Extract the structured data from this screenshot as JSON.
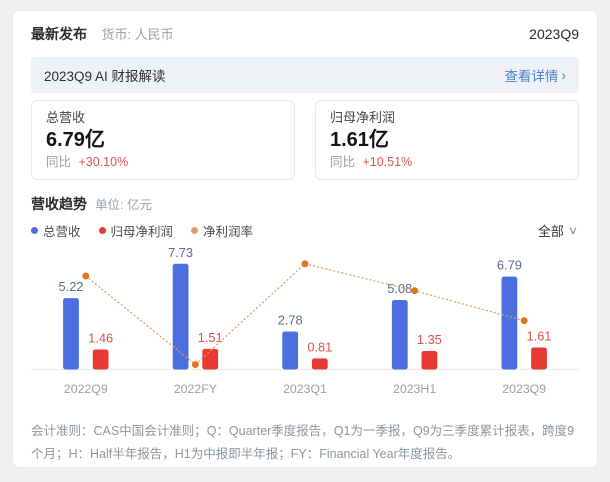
{
  "page": {
    "header": {
      "title": "最新发布",
      "currency_label": "货币: 人民币",
      "period": "2023Q9"
    },
    "ai_banner": {
      "title": "2023Q9 AI 财报解读",
      "link_label": "查看详情"
    },
    "stat_cards": [
      {
        "label": "总营收",
        "value": "6.79亿",
        "yoy_label": "同比",
        "yoy_value": "+30.10%"
      },
      {
        "label": "归母净利润",
        "value": "1.61亿",
        "yoy_label": "同比",
        "yoy_value": "+10.51%"
      }
    ],
    "section": {
      "title": "营收趋势",
      "unit_label": "单位: 亿元"
    },
    "filter": {
      "selected": "全部"
    },
    "footnote": "会计准则：CAS中国会计准则；Q：Quarter季度报告，Q1为一季报，Q9为三季度累计报表，跨度9个月；H：Half半年报告，H1为中报即半年报；FY：Financial Year年度报告。"
  },
  "colors": {
    "accent_link": "#4f7fd0",
    "yoy_up_red": "#e0544e",
    "banner_bg": "#eef1f6",
    "axis_label_gray": "#9b9fa6",
    "axis_line_gray": "#e9e9e9"
  },
  "icons": {
    "chevron_right": "›",
    "chevron_down": "∨"
  },
  "chart_data": {
    "type": "bar",
    "subtype": "grouped-bars-with-dotted-line",
    "title": "营收趋势",
    "unit": "亿元",
    "categories": [
      "2022Q9",
      "2022FY",
      "2023Q1",
      "2023H1",
      "2023Q9"
    ],
    "series": [
      {
        "key": "total-revenue",
        "name": "总营收",
        "type": "bar",
        "color": "#4b6fe0",
        "label_color": "#5c6b92",
        "values": [
          5.22,
          7.73,
          2.78,
          5.08,
          6.79
        ]
      },
      {
        "key": "net-profit",
        "name": "归母净利润",
        "type": "bar",
        "color": "#e93935",
        "label_color": "#d9544e",
        "values": [
          1.46,
          1.51,
          0.81,
          1.35,
          1.61
        ]
      },
      {
        "key": "net-margin",
        "name": "净利润率",
        "type": "line",
        "style": "dotted",
        "color": "#e39b60",
        "marker_color": "#e2761f",
        "unit": "%",
        "values_estimated_pct": [
          27.97,
          19.53,
          29.14,
          26.57,
          23.71
        ]
      }
    ],
    "value_labels_shown": true,
    "grid": false,
    "legend_position": "top-left",
    "x_axis_labels_shown": true,
    "y_axis_hidden": true
  }
}
